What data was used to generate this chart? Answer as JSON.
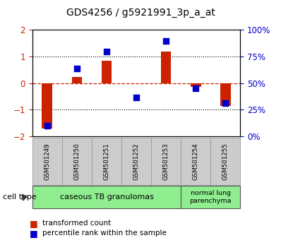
{
  "title": "GDS4256 / g5921991_3p_a_at",
  "samples": [
    "GSM501249",
    "GSM501250",
    "GSM501251",
    "GSM501252",
    "GSM501253",
    "GSM501254",
    "GSM501255"
  ],
  "red_bars": [
    -1.72,
    0.22,
    0.85,
    -0.02,
    1.2,
    -0.15,
    -0.85
  ],
  "blue_dots": [
    -1.6,
    0.55,
    1.2,
    -0.55,
    1.6,
    -0.2,
    -0.75
  ],
  "ylim": [
    -2,
    2
  ],
  "y2lim": [
    0,
    100
  ],
  "yticks": [
    -2,
    -1,
    0,
    1,
    2
  ],
  "y2ticks": [
    0,
    25,
    50,
    75,
    100
  ],
  "y2ticklabels": [
    "0%",
    "25%",
    "50%",
    "75%",
    "100%"
  ],
  "hlines": [
    -1,
    0,
    1
  ],
  "cell_type_label": "cell type",
  "group0_label": "caseous TB granulomas",
  "group0_count": 5,
  "group1_label": "normal lung\nparenchyma",
  "group1_count": 2,
  "group_color": "#90EE90",
  "legend_red": "transformed count",
  "legend_blue": "percentile rank within the sample",
  "bar_color": "#CC2200",
  "dot_color": "#0000CC",
  "bar_width": 0.35,
  "dot_size": 40,
  "bg_color": "#FFFFFF",
  "tick_color_left": "#CC2200",
  "tick_color_right": "#0000CC",
  "header_bg": "#CCCCCC",
  "zero_line_color": "#CC2200"
}
